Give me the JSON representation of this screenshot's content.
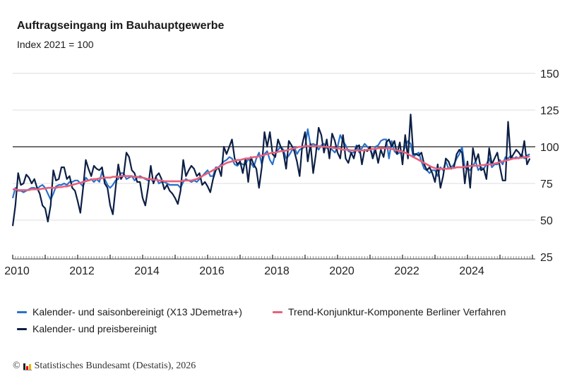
{
  "header": {
    "title": "Auftragseingang im Bauhauptgewerbe",
    "subtitle": "Index 2021 = 100"
  },
  "footer": {
    "copyright_symbol": "©",
    "text": "Statistisches Bundesamt (Destatis), 2026",
    "logo": "Destatis"
  },
  "colors": {
    "seasonal": "#2a72c9",
    "price": "#0c1f45",
    "trend": "#e8607a",
    "reference": "#1a1a1a",
    "grid": "#dddddd"
  },
  "chart_data": {
    "type": "line",
    "title": "Auftragseingang im Bauhauptgewerbe",
    "subtitle": "Index 2021 = 100",
    "x_start": "2010-01",
    "x_end": "2025-12",
    "frequency": "monthly",
    "xlim": [
      2010,
      2026
    ],
    "ylim": [
      25,
      150
    ],
    "y_ticks": [
      150,
      125,
      100,
      75,
      50,
      25
    ],
    "x_tick_labels": [
      "2010",
      "2012",
      "2014",
      "2016",
      "2018",
      "2020",
      "2022",
      "2024"
    ],
    "x_tick_years": [
      2010,
      2012,
      2014,
      2016,
      2018,
      2020,
      2022,
      2024
    ],
    "reference_line": 100,
    "grid": true,
    "y_axis_position": "right",
    "legend_placement": "bottom",
    "series": [
      {
        "name": "Kalender- und saisonbereinigt (X13 JDemetra+)",
        "color": "#2a72c9",
        "values": [
          65,
          72,
          70,
          70,
          69,
          70,
          71,
          72,
          72,
          71,
          73,
          74,
          72,
          68,
          64,
          68,
          73,
          74,
          74,
          75,
          74,
          76,
          76,
          77,
          77,
          75,
          73,
          79,
          77,
          78,
          76,
          78,
          76,
          83,
          78,
          74,
          72,
          74,
          77,
          78,
          82,
          82,
          78,
          79,
          80,
          77,
          79,
          80,
          79,
          78,
          77,
          78,
          76,
          79,
          75,
          76,
          76,
          75,
          74,
          74,
          74,
          74,
          72,
          76,
          78,
          77,
          76,
          77,
          76,
          78,
          80,
          82,
          84,
          80,
          80,
          86,
          86,
          88,
          90,
          91,
          93,
          92,
          88,
          87,
          89,
          88,
          88,
          92,
          89,
          86,
          92,
          96,
          88,
          95,
          97,
          91,
          88,
          95,
          98,
          100,
          98,
          92,
          94,
          97,
          100,
          95,
          98,
          99,
          100,
          112,
          101,
          102,
          101,
          98,
          101,
          102,
          99,
          100,
          98,
          96,
          100,
          108,
          104,
          101,
          97,
          96,
          96,
          101,
          96,
          99,
          102,
          100,
          98,
          94,
          100,
          101,
          104,
          105,
          105,
          92,
          104,
          97,
          95,
          96,
          96,
          100,
          104,
          102,
          93,
          95,
          96,
          90,
          85,
          84,
          82,
          84,
          84,
          80,
          86,
          84,
          90,
          85,
          86,
          88,
          92,
          95,
          100,
          86,
          85,
          84,
          87,
          90,
          84,
          86,
          85,
          88,
          92,
          86,
          88,
          88,
          91,
          88,
          93,
          92,
          94,
          92,
          93,
          92,
          95,
          92,
          94,
          95
        ]
      },
      {
        "name": "Trend-Konjunktur-Komponente Berliner Verfahren",
        "color": "#e8607a",
        "values": [
          71,
          71,
          70.5,
          70.5,
          70.5,
          70.5,
          70.5,
          71,
          71,
          71,
          71,
          71.5,
          71.5,
          72,
          72,
          72,
          72,
          72.5,
          72.5,
          73,
          73,
          73.5,
          74,
          74.5,
          75,
          75.5,
          76,
          76.5,
          77,
          77.5,
          78,
          78,
          78.5,
          78.5,
          79,
          79,
          79,
          79.5,
          79.5,
          79.5,
          80,
          80,
          80,
          80,
          80,
          79.5,
          79.5,
          79,
          79,
          78.5,
          78,
          78,
          77.5,
          77.5,
          77,
          77,
          76.5,
          76.5,
          76.5,
          76.5,
          76.5,
          76.5,
          76.5,
          77,
          77,
          77,
          77,
          77.5,
          78,
          79,
          80,
          81,
          82,
          83,
          84,
          85,
          86,
          87,
          88,
          89,
          89.5,
          90,
          90.5,
          91,
          91,
          91.5,
          92,
          92,
          92.5,
          93,
          93,
          93.5,
          94,
          94.5,
          95,
          95.5,
          96,
          96,
          96.5,
          97,
          97,
          97.5,
          98,
          98.5,
          99,
          99.5,
          100,
          100,
          100.5,
          100.5,
          100.5,
          100.5,
          100.5,
          100.5,
          100,
          100,
          100,
          99.5,
          99.5,
          99,
          99,
          98.5,
          98,
          98,
          98,
          97.5,
          97.5,
          97.5,
          97.5,
          97.5,
          97.5,
          98,
          98,
          98.5,
          98.5,
          99,
          99,
          99,
          99,
          99,
          98.5,
          98,
          97.5,
          97,
          96.5,
          96,
          95,
          94,
          93,
          92,
          91,
          90,
          89,
          88,
          87,
          86,
          85.5,
          85,
          85,
          85,
          85,
          85,
          85.5,
          85.5,
          86,
          86,
          86,
          86.5,
          86.5,
          87,
          87,
          87,
          87,
          87.5,
          87.5,
          88,
          88,
          88,
          88.5,
          89,
          89.5,
          90,
          90.5,
          91,
          91.5,
          92,
          92,
          92.5,
          92.5,
          93,
          93,
          93.5
        ]
      },
      {
        "name": "Kalender- und preisbereinigt",
        "color": "#0c1f45",
        "values": [
          46,
          60,
          82,
          74,
          75,
          81,
          79,
          75,
          78,
          72,
          68,
          60,
          58,
          49,
          60,
          84,
          77,
          78,
          86,
          86,
          78,
          80,
          72,
          70,
          63,
          55,
          72,
          91,
          85,
          80,
          87,
          85,
          84,
          86,
          75,
          72,
          60,
          54,
          72,
          88,
          78,
          81,
          96,
          93,
          84,
          82,
          76,
          76,
          65,
          60,
          72,
          87,
          75,
          80,
          82,
          78,
          71,
          74,
          70,
          68,
          65,
          61,
          70,
          91,
          80,
          84,
          87,
          85,
          80,
          82,
          74,
          76,
          73,
          69,
          78,
          84,
          86,
          80,
          100,
          95,
          100,
          105,
          92,
          88,
          90,
          82,
          92,
          76,
          93,
          88,
          85,
          72,
          86,
          110,
          100,
          110,
          95,
          93,
          105,
          100,
          96,
          85,
          104,
          101,
          97,
          90,
          80,
          102,
          110,
          90,
          102,
          82,
          95,
          113,
          108,
          96,
          105,
          92,
          109,
          104,
          96,
          92,
          108,
          92,
          89,
          96,
          92,
          100,
          101,
          88,
          98,
          97,
          100,
          92,
          98,
          89,
          98,
          93,
          103,
          105,
          100,
          104,
          95,
          103,
          88,
          108,
          92,
          122,
          95,
          95,
          94,
          96,
          88,
          84,
          86,
          82,
          76,
          88,
          72,
          80,
          92,
          90,
          85,
          86,
          95,
          98,
          96,
          75,
          90,
          72,
          99,
          90,
          95,
          84,
          85,
          78,
          99,
          88,
          92,
          96,
          86,
          77,
          77,
          117,
          92,
          95,
          98,
          96,
          93,
          104,
          88,
          92
        ]
      }
    ]
  },
  "legend": {
    "items": [
      {
        "label": "Kalender- und saisonbereinigt (X13 JDemetra+)",
        "color": "#2a72c9"
      },
      {
        "label": "Trend-Konjunktur-Komponente Berliner Verfahren",
        "color": "#e8607a"
      },
      {
        "label": "Kalender- und preisbereinigt",
        "color": "#0c1f45"
      }
    ]
  }
}
